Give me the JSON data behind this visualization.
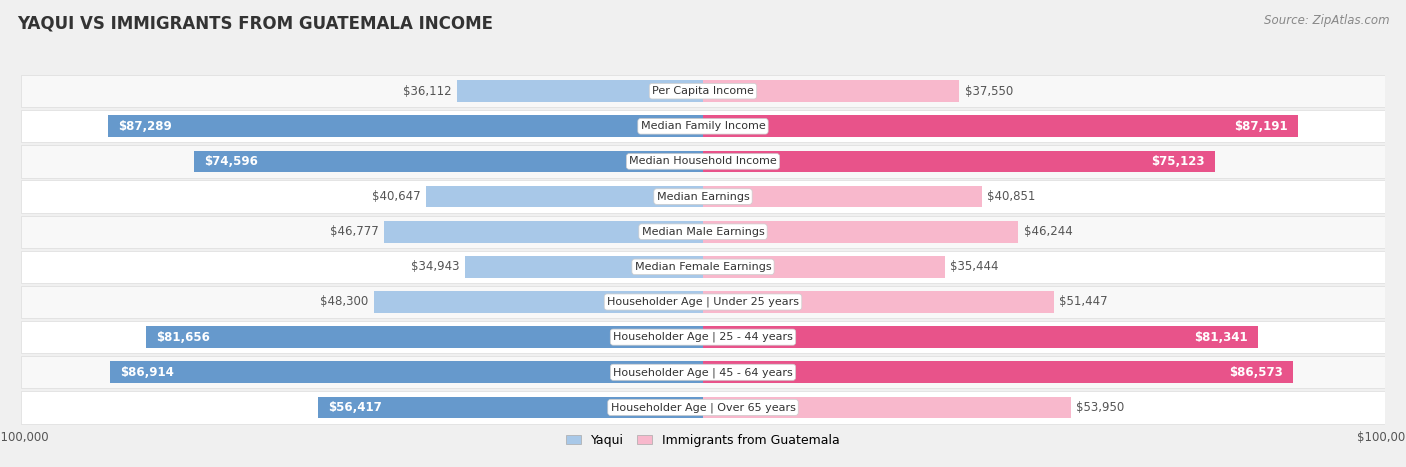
{
  "title": "YAQUI VS IMMIGRANTS FROM GUATEMALA INCOME",
  "source": "Source: ZipAtlas.com",
  "categories": [
    "Per Capita Income",
    "Median Family Income",
    "Median Household Income",
    "Median Earnings",
    "Median Male Earnings",
    "Median Female Earnings",
    "Householder Age | Under 25 years",
    "Householder Age | 25 - 44 years",
    "Householder Age | 45 - 64 years",
    "Householder Age | Over 65 years"
  ],
  "yaqui_values": [
    36112,
    87289,
    74596,
    40647,
    46777,
    34943,
    48300,
    81656,
    86914,
    56417
  ],
  "guatemala_values": [
    37550,
    87191,
    75123,
    40851,
    46244,
    35444,
    51447,
    81341,
    86573,
    53950
  ],
  "yaqui_labels": [
    "$36,112",
    "$87,289",
    "$74,596",
    "$40,647",
    "$46,777",
    "$34,943",
    "$48,300",
    "$81,656",
    "$86,914",
    "$56,417"
  ],
  "guatemala_labels": [
    "$37,550",
    "$87,191",
    "$75,123",
    "$40,851",
    "$46,244",
    "$35,444",
    "$51,447",
    "$81,341",
    "$86,573",
    "$53,950"
  ],
  "max_value": 100000,
  "yaqui_color_light": "#a8c8e8",
  "yaqui_color_dark": "#6699cc",
  "guatemala_color_light": "#f8b8cc",
  "guatemala_color_dark": "#e8538a",
  "background_color": "#f0f0f0",
  "row_bg_odd": "#f8f8f8",
  "row_bg_even": "#ffffff",
  "label_color_inside": "#ffffff",
  "label_color_outside": "#555555",
  "title_fontsize": 12,
  "source_fontsize": 8.5,
  "bar_label_fontsize": 8.5,
  "category_fontsize": 8,
  "legend_fontsize": 9,
  "axis_label_fontsize": 8.5,
  "inside_threshold": 55000
}
